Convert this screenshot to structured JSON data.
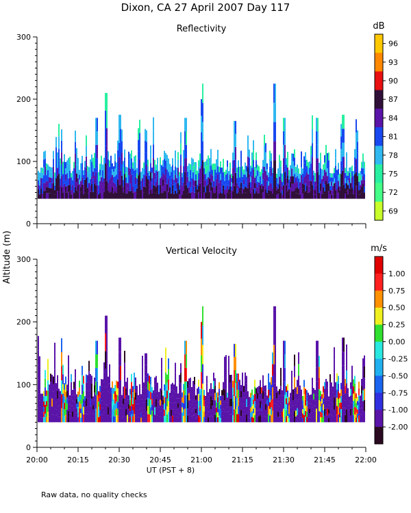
{
  "title": "Dixon, CA 27 April 2007  Day 117",
  "footnote": "Raw data, no quality checks",
  "shared_ylabel": "Altitude (m)",
  "chart_data": [
    {
      "type": "heatmap",
      "title": "Reflectivity",
      "ylabel": "Altitude (m)",
      "ylim": [
        0,
        300
      ],
      "yticks": [
        0,
        100,
        200,
        300
      ],
      "colorbar": {
        "unit": "dB",
        "ticks": [
          "69",
          "72",
          "75",
          "78",
          "81",
          "84",
          "87",
          "90",
          "93",
          "96"
        ],
        "colors": [
          "#c8ff2a",
          "#44ff88",
          "#28f0a0",
          "#30b8f0",
          "#1848f0",
          "#5a14a8",
          "#301038",
          "#e81010",
          "#ff8800",
          "#ffc800"
        ]
      }
    },
    {
      "type": "heatmap",
      "title": "Vertical Velocity",
      "ylabel": "Altitude (m)",
      "ylim": [
        0,
        300
      ],
      "yticks": [
        0,
        100,
        200,
        300
      ],
      "xlabel": "UT  (PST + 8)",
      "xticks": [
        "20:00",
        "20:15",
        "20:30",
        "20:45",
        "21:00",
        "21:15",
        "21:30",
        "21:45",
        "22:00"
      ],
      "colorbar": {
        "unit": "m/s",
        "ticks": [
          "-2.00",
          "-1.00",
          "-0.75",
          "-0.50",
          "-0.25",
          "0.00",
          "0.25",
          "0.50",
          "0.75",
          "1.00"
        ],
        "colors": [
          "#2a0a20",
          "#5a14a8",
          "#3030e0",
          "#1a64f0",
          "#20b0f0",
          "#28e8e0",
          "#30e030",
          "#f0f020",
          "#ff9000",
          "#ff2020",
          "#e00000"
        ]
      }
    }
  ]
}
